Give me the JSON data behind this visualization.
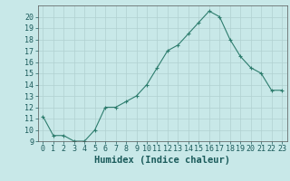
{
  "x": [
    0,
    1,
    2,
    3,
    4,
    5,
    6,
    7,
    8,
    9,
    10,
    11,
    12,
    13,
    14,
    15,
    16,
    17,
    18,
    19,
    20,
    21,
    22,
    23
  ],
  "y": [
    11.2,
    9.5,
    9.5,
    9.0,
    9.0,
    10.0,
    12.0,
    12.0,
    12.5,
    13.0,
    14.0,
    15.5,
    17.0,
    17.5,
    18.5,
    19.5,
    20.5,
    20.0,
    18.0,
    16.5,
    15.5,
    15.0,
    13.5,
    13.5
  ],
  "xlabel": "Humidex (Indice chaleur)",
  "ylim": [
    9,
    21
  ],
  "xlim": [
    -0.5,
    23.5
  ],
  "yticks": [
    9,
    10,
    11,
    12,
    13,
    14,
    15,
    16,
    17,
    18,
    19,
    20
  ],
  "xticks": [
    0,
    1,
    2,
    3,
    4,
    5,
    6,
    7,
    8,
    9,
    10,
    11,
    12,
    13,
    14,
    15,
    16,
    17,
    18,
    19,
    20,
    21,
    22,
    23
  ],
  "line_color": "#2e7d6e",
  "marker": "+",
  "marker_color": "#2e7d6e",
  "bg_color": "#c8e8e8",
  "grid_color": "#b0d0d0",
  "xlabel_fontsize": 7.5,
  "tick_fontsize": 6
}
